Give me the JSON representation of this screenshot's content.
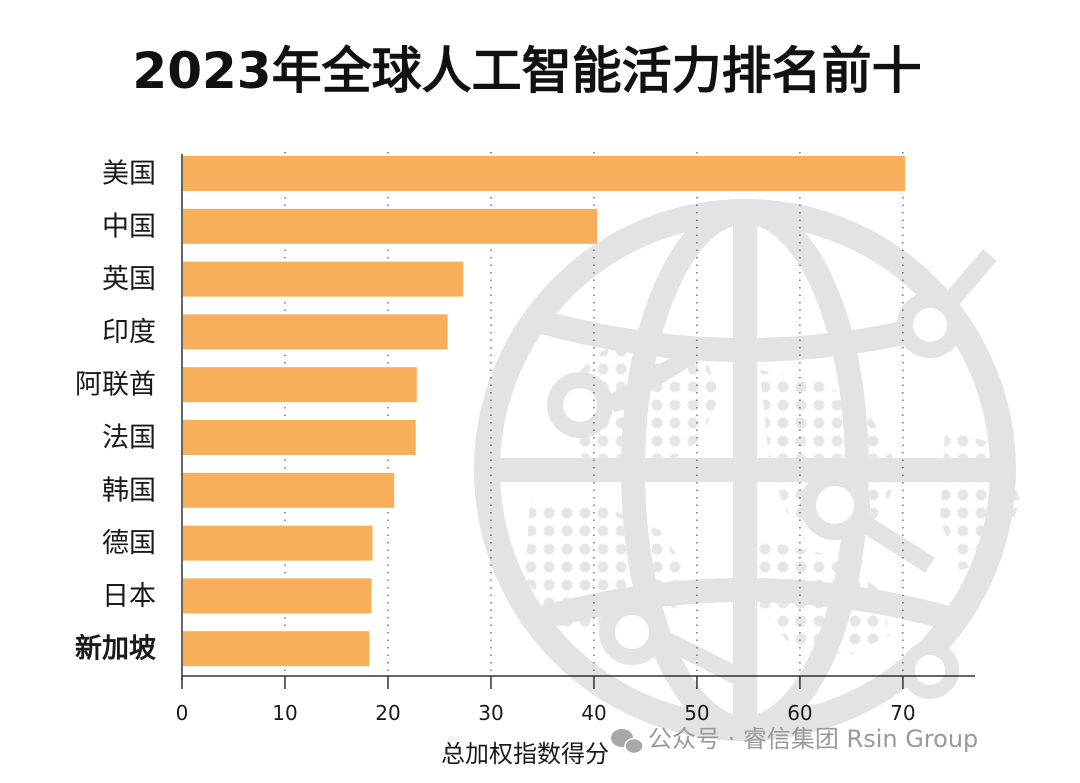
{
  "chart_data": {
    "type": "bar",
    "orientation": "horizontal",
    "title": "2023年全球人工智能活力排名前十",
    "xlabel": "总加权指数得分",
    "ylabel": "",
    "categories": [
      "美国",
      "中国",
      "英国",
      "印度",
      "阿联酋",
      "法国",
      "韩国",
      "德国",
      "日本",
      "新加坡"
    ],
    "values": [
      70.2,
      40.3,
      27.3,
      25.8,
      22.8,
      22.7,
      20.6,
      18.5,
      18.4,
      18.2
    ],
    "xlim": [
      0,
      77
    ],
    "xticks": [
      "0",
      "10",
      "20",
      "30",
      "40",
      "50",
      "60",
      "70"
    ],
    "highlight_category": "新加坡",
    "grid": "dotted vertical",
    "colors": {
      "bar": "#F7AF5C",
      "highlight_label": "#D9252F",
      "text": "#1a1a1a",
      "globe": "#e3e3e3"
    }
  },
  "background_icon": "globe-network-icon",
  "watermark": {
    "icon": "wechat-icon",
    "text": "公众号 · 睿信集团 Rsin Group"
  }
}
